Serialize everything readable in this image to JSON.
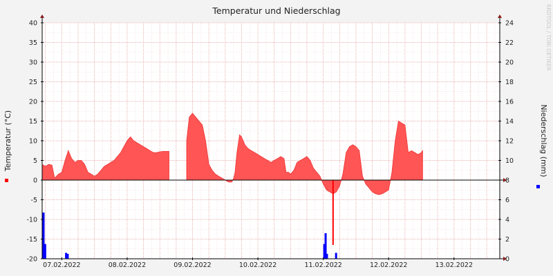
{
  "chart_data": {
    "type": "area",
    "title": "Temperatur und Niederschlag",
    "watermark": "RRDTOOL / TOBI OETIKER",
    "ylabel_left": "Temperatur (°C)",
    "ylabel_right": "Niederschlag (mm)",
    "ylim_left": [
      -20,
      40
    ],
    "ylim_right": [
      0,
      24
    ],
    "yticks_left": [
      -20,
      -15,
      -10,
      -5,
      0,
      5,
      10,
      15,
      20,
      25,
      30,
      35,
      40
    ],
    "yticks_right": [
      0,
      2,
      4,
      6,
      8,
      10,
      12,
      14,
      16,
      18,
      20,
      22,
      24
    ],
    "x_range_days": [
      6.7,
      13.7
    ],
    "x_ticks": [
      {
        "label": "07.02.2022",
        "day": 7.0
      },
      {
        "label": "08.02.2022",
        "day": 8.0
      },
      {
        "label": "09.02.2022",
        "day": 9.0
      },
      {
        "label": "10.02.2022",
        "day": 10.0
      },
      {
        "label": "11.02.2022",
        "day": 11.0
      },
      {
        "label": "12.02.2022",
        "day": 12.0
      },
      {
        "label": "13.02.2022",
        "day": 13.0
      }
    ],
    "legend": "left and right edges, as colour markers",
    "grid": true,
    "series": [
      {
        "name": "Temperatur",
        "unit": "°C",
        "color": "#ff5555",
        "segments": [
          [
            [
              6.7,
              4.0
            ],
            [
              6.75,
              3.5
            ],
            [
              6.8,
              4.0
            ],
            [
              6.85,
              3.8
            ],
            [
              6.89,
              0.5
            ],
            [
              6.95,
              1.5
            ],
            [
              7.0,
              2.0
            ],
            [
              7.05,
              5.0
            ],
            [
              7.1,
              7.5
            ],
            [
              7.15,
              5.5
            ],
            [
              7.2,
              4.5
            ],
            [
              7.25,
              5.0
            ],
            [
              7.3,
              5.0
            ],
            [
              7.35,
              4.0
            ],
            [
              7.4,
              2.0
            ],
            [
              7.45,
              1.5
            ],
            [
              7.5,
              1.0
            ],
            [
              7.55,
              1.5
            ],
            [
              7.6,
              2.5
            ],
            [
              7.65,
              3.5
            ],
            [
              7.7,
              4.0
            ],
            [
              7.75,
              4.5
            ],
            [
              7.8,
              5.0
            ],
            [
              7.85,
              6.0
            ],
            [
              7.9,
              7.0
            ],
            [
              7.95,
              8.5
            ],
            [
              8.0,
              10.0
            ],
            [
              8.05,
              11.0
            ],
            [
              8.1,
              10.0
            ],
            [
              8.15,
              9.5
            ],
            [
              8.2,
              9.0
            ],
            [
              8.25,
              8.5
            ],
            [
              8.3,
              8.0
            ],
            [
              8.35,
              7.5
            ],
            [
              8.4,
              7.0
            ],
            [
              8.45,
              7.0
            ],
            [
              8.5,
              7.2
            ],
            [
              8.55,
              7.3
            ],
            [
              8.6,
              7.3
            ],
            [
              8.64,
              7.3
            ]
          ],
          [
            [
              8.91,
              10.0
            ],
            [
              8.95,
              16.0
            ],
            [
              9.0,
              17.0
            ],
            [
              9.05,
              16.0
            ],
            [
              9.1,
              15.0
            ],
            [
              9.15,
              14.0
            ],
            [
              9.2,
              10.0
            ],
            [
              9.25,
              4.0
            ],
            [
              9.3,
              2.5
            ],
            [
              9.35,
              1.5
            ],
            [
              9.4,
              1.0
            ],
            [
              9.45,
              0.5
            ],
            [
              9.5,
              0.0
            ],
            [
              9.55,
              -0.5
            ],
            [
              9.6,
              -0.5
            ],
            [
              9.63,
              0.5
            ],
            [
              9.65,
              2.0
            ],
            [
              9.68,
              7.0
            ],
            [
              9.72,
              11.5
            ],
            [
              9.75,
              11.0
            ],
            [
              9.8,
              9.0
            ],
            [
              9.85,
              8.0
            ],
            [
              9.9,
              7.5
            ],
            [
              9.95,
              7.0
            ],
            [
              10.0,
              6.5
            ],
            [
              10.05,
              6.0
            ],
            [
              10.1,
              5.5
            ],
            [
              10.15,
              5.0
            ],
            [
              10.2,
              4.5
            ],
            [
              10.25,
              5.0
            ],
            [
              10.3,
              5.5
            ],
            [
              10.35,
              6.0
            ],
            [
              10.4,
              5.5
            ],
            [
              10.43,
              2.0
            ],
            [
              10.47,
              2.0
            ],
            [
              10.5,
              1.5
            ],
            [
              10.55,
              2.5
            ],
            [
              10.6,
              4.5
            ],
            [
              10.65,
              5.0
            ],
            [
              10.7,
              5.5
            ],
            [
              10.75,
              6.0
            ],
            [
              10.8,
              5.0
            ],
            [
              10.85,
              3.0
            ],
            [
              10.9,
              2.0
            ],
            [
              10.95,
              1.0
            ],
            [
              11.0,
              -1.0
            ],
            [
              11.05,
              -2.5
            ],
            [
              11.1,
              -3.0
            ],
            [
              11.15,
              -3.5
            ],
            [
              11.2,
              -3.0
            ],
            [
              11.25,
              -1.5
            ],
            [
              11.3,
              1.5
            ],
            [
              11.35,
              7.0
            ],
            [
              11.4,
              8.5
            ],
            [
              11.45,
              9.0
            ],
            [
              11.5,
              8.5
            ],
            [
              11.55,
              7.5
            ],
            [
              11.6,
              1.0
            ],
            [
              11.65,
              -1.0
            ],
            [
              11.7,
              -2.0
            ],
            [
              11.75,
              -3.0
            ],
            [
              11.8,
              -3.5
            ],
            [
              11.85,
              -3.7
            ],
            [
              11.9,
              -3.5
            ],
            [
              11.95,
              -3.0
            ],
            [
              12.0,
              -2.5
            ],
            [
              12.05,
              2.0
            ],
            [
              12.1,
              10.0
            ],
            [
              12.15,
              15.0
            ],
            [
              12.2,
              14.5
            ],
            [
              12.25,
              14.0
            ],
            [
              12.3,
              7.0
            ],
            [
              12.35,
              7.5
            ],
            [
              12.4,
              7.0
            ],
            [
              12.45,
              6.5
            ],
            [
              12.5,
              7.0
            ],
            [
              12.52,
              7.5
            ]
          ]
        ]
      },
      {
        "name": "Niederschlag",
        "unit": "mm",
        "color": "#0000ff",
        "bars": [
          [
            6.705,
            4.7
          ],
          [
            6.73,
            1.5
          ],
          [
            7.05,
            0.6
          ],
          [
            7.075,
            0.5
          ],
          [
            11.0,
            1.5
          ],
          [
            11.02,
            2.6
          ],
          [
            11.04,
            0.5
          ],
          [
            11.18,
            0.6
          ]
        ]
      }
    ],
    "annotations": [
      {
        "type": "spike",
        "color": "#ff0000",
        "day": 11.15,
        "from": 0,
        "to": -16.5
      }
    ]
  }
}
